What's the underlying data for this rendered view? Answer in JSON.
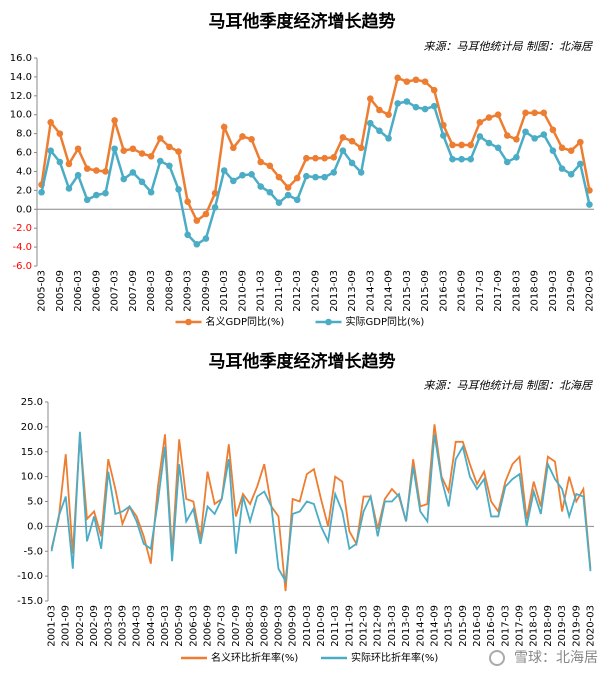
{
  "chart_data": [
    {
      "type": "line",
      "title": "马耳他季度经济增长趋势",
      "subtitle": "来源：马耳他统计局 制图：北海居",
      "markers": true,
      "legend": "bottom",
      "negative_tick_color": "#ff0000",
      "categories": [
        "2005-03",
        null,
        "2005-09",
        null,
        "2006-03",
        null,
        "2006-09",
        null,
        "2007-03",
        null,
        "2007-09",
        null,
        "2008-03",
        null,
        "2008-09",
        null,
        "2009-03",
        null,
        "2009-09",
        null,
        "2010-03",
        null,
        "2010-09",
        null,
        "2011-03",
        null,
        "2011-09",
        null,
        "2012-03",
        null,
        "2012-09",
        null,
        "2013-03",
        null,
        "2013-09",
        null,
        "2014-03",
        null,
        "2014-09",
        null,
        "2015-03",
        null,
        "2015-09",
        null,
        "2016-03",
        null,
        "2016-09",
        null,
        "2017-03",
        null,
        "2017-09",
        null,
        "2018-03",
        null,
        "2018-09",
        null,
        "2019-03",
        null,
        "2019-09",
        null,
        "2020-03"
      ],
      "series": [
        {
          "name": "名义GDP同比(%)",
          "color": "#ed7d31",
          "values": [
            2.6,
            9.2,
            8.0,
            4.8,
            6.4,
            4.3,
            4.1,
            4.0,
            9.4,
            6.2,
            6.4,
            5.9,
            5.6,
            7.5,
            6.6,
            6.1,
            0.8,
            -1.2,
            -0.5,
            1.7,
            8.7,
            6.5,
            7.7,
            7.4,
            5.0,
            4.6,
            3.4,
            2.3,
            3.3,
            5.4,
            5.4,
            5.4,
            5.5,
            7.6,
            7.2,
            6.5,
            11.7,
            10.5,
            10.0,
            13.9,
            13.5,
            13.7,
            13.5,
            12.6,
            8.9,
            6.8,
            6.8,
            6.8,
            9.2,
            9.7,
            10.0,
            7.8,
            7.4,
            10.2,
            10.2,
            10.2,
            8.4,
            6.5,
            6.2,
            7.1,
            2.0
          ]
        },
        {
          "name": "实际GDP同比(%)",
          "color": "#4bacc6",
          "values": [
            1.8,
            6.2,
            5.0,
            2.2,
            3.6,
            1.0,
            1.5,
            1.7,
            6.4,
            3.2,
            3.9,
            2.9,
            1.8,
            5.1,
            4.6,
            2.1,
            -2.7,
            -3.7,
            -3.1,
            0.2,
            4.1,
            3.0,
            3.6,
            3.7,
            2.4,
            1.8,
            0.7,
            1.5,
            1.0,
            3.5,
            3.4,
            3.4,
            3.9,
            6.2,
            4.9,
            3.9,
            9.1,
            8.3,
            7.5,
            11.2,
            11.4,
            10.8,
            10.6,
            10.9,
            7.8,
            5.3,
            5.3,
            5.3,
            7.7,
            7.0,
            6.5,
            5.0,
            5.5,
            8.2,
            7.5,
            7.9,
            6.2,
            4.3,
            3.7,
            4.8,
            0.5
          ]
        }
      ],
      "ylim": [
        -6,
        16
      ],
      "yticks": [
        {
          "value": -6,
          "label": "-6.0"
        },
        {
          "value": -4,
          "label": "-4.0"
        },
        {
          "value": -2,
          "label": "-2.0"
        },
        {
          "value": 0,
          "label": "0.0"
        },
        {
          "value": 2,
          "label": "2.0"
        },
        {
          "value": 4,
          "label": "4.0"
        },
        {
          "value": 6,
          "label": "6.0"
        },
        {
          "value": 8,
          "label": "8.0"
        },
        {
          "value": 10,
          "label": "10.0"
        },
        {
          "value": 12,
          "label": "12.0"
        },
        {
          "value": 14,
          "label": "14.0"
        },
        {
          "value": 16,
          "label": "16.0"
        }
      ]
    },
    {
      "type": "line",
      "title": "马耳他季度经济增长趋势",
      "subtitle": "来源：马耳他统计局 制图：北海居",
      "markers": false,
      "legend": "bottom",
      "watermark": "雪球：北海居",
      "categories": [
        "2001-03",
        null,
        "2001-09",
        null,
        "2002-03",
        null,
        "2002-09",
        null,
        "2003-03",
        null,
        "2003-09",
        null,
        "2004-03",
        null,
        "2004-09",
        null,
        "2005-03",
        null,
        "2005-09",
        null,
        "2006-03",
        null,
        "2006-09",
        null,
        "2007-03",
        null,
        "2007-09",
        null,
        "2008-03",
        null,
        "2008-09",
        null,
        "2009-03",
        null,
        "2009-09",
        null,
        "2010-03",
        null,
        "2010-09",
        null,
        "2011-03",
        null,
        "2011-09",
        null,
        "2012-03",
        null,
        "2012-09",
        null,
        "2013-03",
        null,
        "2013-09",
        null,
        "2014-03",
        null,
        "2014-09",
        null,
        "2015-03",
        null,
        "2015-09",
        null,
        "2016-03",
        null,
        "2016-09",
        null,
        "2017-03",
        null,
        "2017-09",
        null,
        "2018-03",
        null,
        "2018-09",
        null,
        "2019-03",
        null,
        "2019-09",
        null,
        "2020-03"
      ],
      "series": [
        {
          "name": "名义环比折年率(%)",
          "color": "#ed7d31",
          "values": [
            -4.5,
            1.5,
            14.5,
            -5.5,
            18.5,
            1.5,
            3.0,
            -2.0,
            13.5,
            7.5,
            0.5,
            4.0,
            2.0,
            -2.0,
            -7.5,
            8.0,
            18.5,
            -5.5,
            17.5,
            5.5,
            5.0,
            -2.5,
            11.0,
            4.5,
            5.5,
            16.5,
            2.0,
            6.5,
            4.5,
            8.0,
            12.5,
            4.0,
            2.0,
            -13.0,
            5.5,
            5.0,
            10.5,
            11.5,
            5.5,
            0.0,
            10.0,
            9.0,
            -1.0,
            -3.5,
            6.0,
            6.0,
            -0.5,
            5.5,
            7.5,
            6.0,
            1.0,
            13.5,
            4.0,
            4.5,
            20.5,
            10.0,
            7.0,
            17.0,
            17.0,
            12.5,
            8.5,
            11.0,
            5.0,
            3.0,
            9.0,
            12.5,
            14.0,
            1.5,
            9.0,
            4.0,
            14.0,
            13.0,
            3.0,
            10.0,
            5.0,
            7.5,
            -8.5
          ]
        },
        {
          "name": "实际环比折年率(%)",
          "color": "#4bacc6",
          "values": [
            -5.0,
            2.0,
            6.0,
            -8.5,
            19.0,
            -3.0,
            2.0,
            -4.5,
            11.0,
            2.5,
            3.0,
            4.0,
            1.0,
            -3.5,
            -4.5,
            5.0,
            16.0,
            -7.0,
            12.5,
            1.0,
            3.5,
            -3.5,
            4.0,
            2.5,
            5.5,
            13.5,
            -5.5,
            6.0,
            1.0,
            6.0,
            7.0,
            4.0,
            -8.5,
            -11.0,
            2.5,
            3.0,
            5.0,
            4.5,
            0.0,
            -3.0,
            6.5,
            3.0,
            -4.5,
            -3.5,
            3.0,
            6.0,
            -2.0,
            5.0,
            5.0,
            6.5,
            1.0,
            12.0,
            3.0,
            1.0,
            18.5,
            9.5,
            4.0,
            13.5,
            16.0,
            10.0,
            7.5,
            9.5,
            2.0,
            2.0,
            8.0,
            9.5,
            10.5,
            0.0,
            7.0,
            2.5,
            12.5,
            9.5,
            7.5,
            2.0,
            6.5,
            6.0,
            -9.0
          ]
        }
      ],
      "ylim": [
        -15,
        25
      ],
      "yticks": [
        {
          "value": -15,
          "label": "-15.0"
        },
        {
          "value": -10,
          "label": "-10.0"
        },
        {
          "value": -5,
          "label": "-5.0"
        },
        {
          "value": 0,
          "label": "0.0"
        },
        {
          "value": 5,
          "label": "5.0"
        },
        {
          "value": 10,
          "label": "10.0"
        },
        {
          "value": 15,
          "label": "15.0"
        },
        {
          "value": 20,
          "label": "20.0"
        },
        {
          "value": 25,
          "label": "25.0"
        }
      ]
    }
  ]
}
